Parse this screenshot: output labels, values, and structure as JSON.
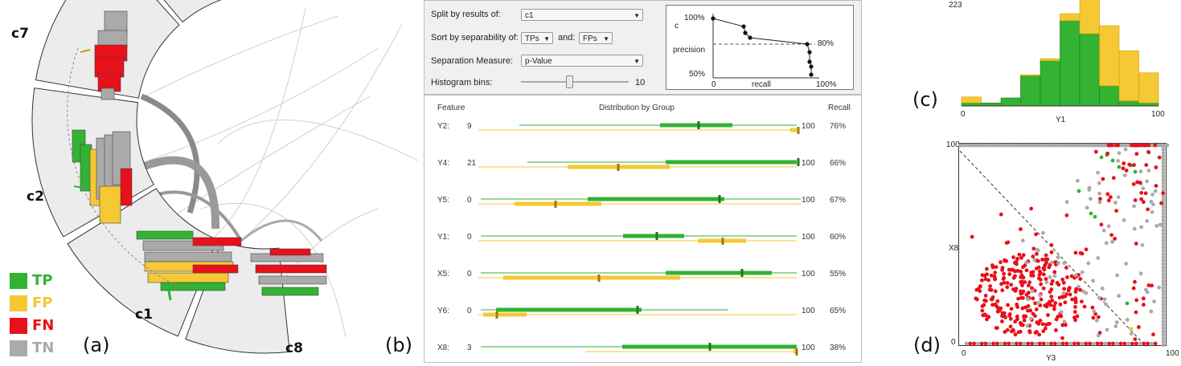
{
  "colors": {
    "tp": "#33b233",
    "fp": "#f5c834",
    "fn": "#e8101a",
    "tn": "#aaaaaa",
    "panel_bg": "#ececec"
  },
  "panel_a": {
    "label": "(a)",
    "segments": [
      "c7",
      "c2",
      "c1",
      "c8"
    ],
    "legend": [
      {
        "key": "TP",
        "color": "#33b233",
        "text_color": "#33b233"
      },
      {
        "key": "FP",
        "color": "#f5c834",
        "text_color": "#f5c834"
      },
      {
        "key": "FN",
        "color": "#e8101a",
        "text_color": "#e8101a"
      },
      {
        "key": "TN",
        "color": "#aaaaaa",
        "text_color": "#aaaaaa"
      }
    ]
  },
  "panel_b": {
    "label": "(b)",
    "split_label": "Split by results of:",
    "split_value": "c1",
    "sort_label": "Sort by separability of:",
    "sort_a": "TPs",
    "and_label": "and:",
    "sort_b": "FPs",
    "measure_label": "Separation Measure:",
    "measure_value": "p-Value",
    "bins_label": "Histogram bins:",
    "bins_value": "10",
    "bins_fraction": 0.62,
    "pr": {
      "y_label_c": "c",
      "y_label": "precision",
      "x_label": "recall",
      "y_top": "100%",
      "y_bottom": "50%",
      "x_left": "0",
      "x_right": "100%",
      "threshold": "80%"
    },
    "headers": {
      "feature": "Feature",
      "distribution": "Distribution by Group",
      "recall": "Recall"
    },
    "features": [
      {
        "name": "Y2:",
        "min": "9",
        "max": "100",
        "recall": "76%"
      },
      {
        "name": "Y4:",
        "min": "21",
        "max": "100",
        "recall": "66%"
      },
      {
        "name": "Y5:",
        "min": "0",
        "max": "100",
        "recall": "67%"
      },
      {
        "name": "Y1:",
        "min": "0",
        "max": "100",
        "recall": "60%"
      },
      {
        "name": "X5:",
        "min": "0",
        "max": "100",
        "recall": "55%"
      },
      {
        "name": "Y6:",
        "min": "0",
        "max": "100",
        "recall": "65%"
      },
      {
        "name": "X8:",
        "min": "3",
        "max": "100",
        "recall": "38%"
      }
    ]
  },
  "panel_c": {
    "label": "(c)",
    "y_max": "223",
    "x_min": "0",
    "x_max": "100",
    "x_label": "Y1"
  },
  "panel_d": {
    "label": "(d)",
    "y_label": "X8",
    "y_max": "100",
    "y_min": "0",
    "x_min": "0",
    "x_max": "100",
    "x_label": "Y3"
  }
}
